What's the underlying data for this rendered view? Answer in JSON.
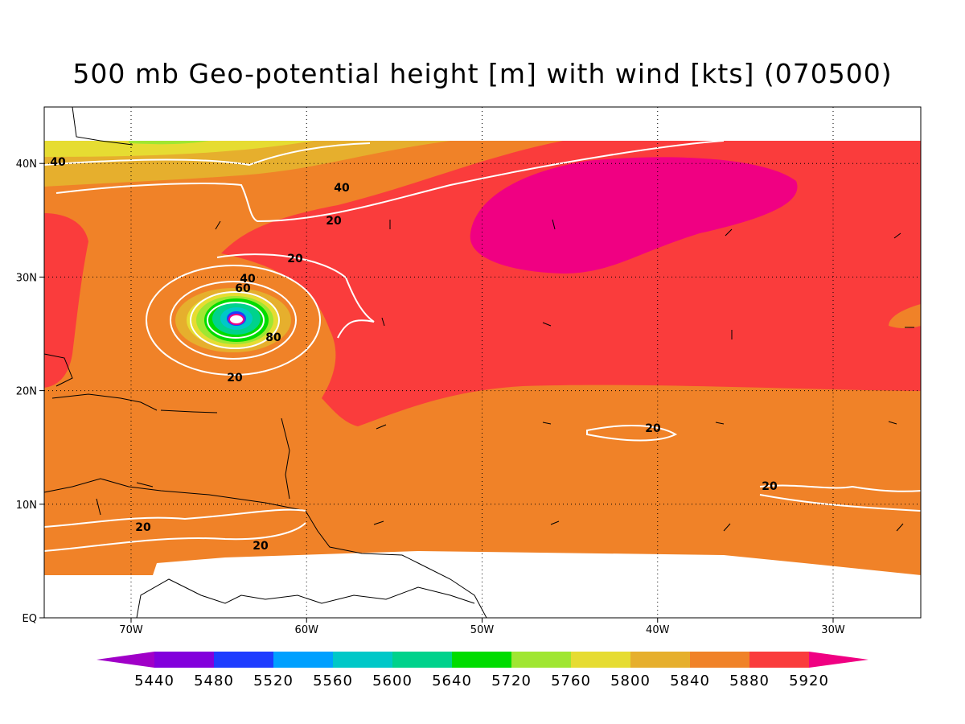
{
  "map": {
    "title": "500 mb Geo-potential height [m] with wind [kts] (070500)",
    "lon_labels": [
      "70W",
      "60W",
      "50W",
      "40W",
      "30W"
    ],
    "lat_labels": [
      "EQ",
      "10N",
      "20N",
      "30N",
      "40N"
    ],
    "contour_labels": [
      "40",
      "40",
      "20",
      "20",
      "40",
      "60",
      "80",
      "20",
      "20",
      "20",
      "20",
      "20"
    ],
    "colorbar": {
      "levels": [
        5440,
        5480,
        5520,
        5560,
        5600,
        5640,
        5720,
        5760,
        5800,
        5840,
        5880,
        5920
      ],
      "colors": [
        "#a000c8",
        "#8200dc",
        "#1e3cff",
        "#00a0ff",
        "#00c8c8",
        "#00d28c",
        "#00dc00",
        "#a0e632",
        "#e6dc32",
        "#e6af2d",
        "#f08228",
        "#fa3c3c",
        "#f00082"
      ]
    }
  }
}
